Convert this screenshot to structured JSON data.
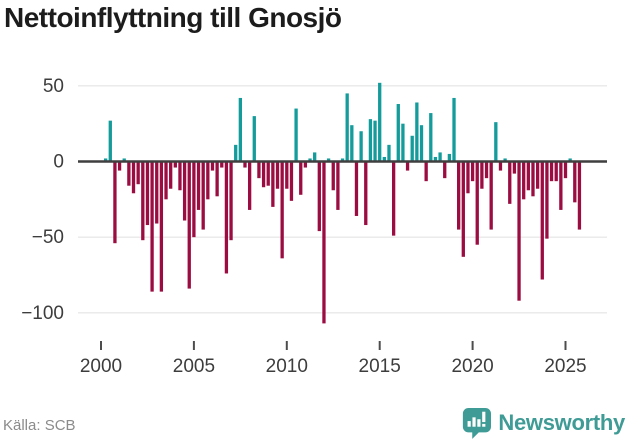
{
  "header": {
    "title": "Nettoinflyttning till Gnosjö"
  },
  "footer": {
    "source": "Källa: SCB",
    "brand": "Newsworthy"
  },
  "colors": {
    "positive": "#149b9b",
    "negative": "#9b0c41",
    "brand_teal": "#3f9b95"
  },
  "chart_data": {
    "type": "bar",
    "title": "Nettoinflyttning till Gnosjö",
    "frequency": "quarterly",
    "x_start": "2000-Q1",
    "x_end": "2025-Q4",
    "values": [
      0,
      2,
      27,
      -54,
      -6,
      2,
      -16,
      -21,
      -15,
      -52,
      -42,
      -86,
      -41,
      -86,
      -25,
      -18,
      -4,
      -19,
      -39,
      -84,
      -50,
      -32,
      -45,
      -25,
      -6,
      -23,
      -4,
      -74,
      -52,
      11,
      42,
      -4,
      -32,
      30,
      -11,
      -17,
      -16,
      -30,
      -18,
      -64,
      -18,
      -26,
      35,
      -22,
      -4,
      2,
      6,
      -46,
      -107,
      2,
      -19,
      -32,
      2,
      45,
      24,
      -36,
      20,
      -42,
      28,
      27,
      52,
      3,
      11,
      -49,
      38,
      25,
      -6,
      17,
      39,
      24,
      -13,
      32,
      3,
      6,
      -11,
      5,
      42,
      -45,
      -63,
      -21,
      -13,
      -55,
      -18,
      -11,
      -45,
      26,
      -6,
      2,
      -28,
      -8,
      -92,
      -25,
      -19,
      -23,
      -18,
      -78,
      -51,
      -13,
      -13,
      -32,
      -11,
      2,
      -27,
      -45
    ],
    "x_tick_labels": [
      "2000",
      "2005",
      "2010",
      "2015",
      "2020",
      "2025"
    ],
    "y_tick_values": [
      50,
      0,
      -50,
      -100
    ],
    "y_tick_labels": [
      "50",
      "0",
      "−50",
      "−100"
    ],
    "ylim": [
      -115,
      58
    ],
    "grid": true,
    "legend": false,
    "positive_color": "#149b9b",
    "negative_color": "#9b0c41"
  }
}
